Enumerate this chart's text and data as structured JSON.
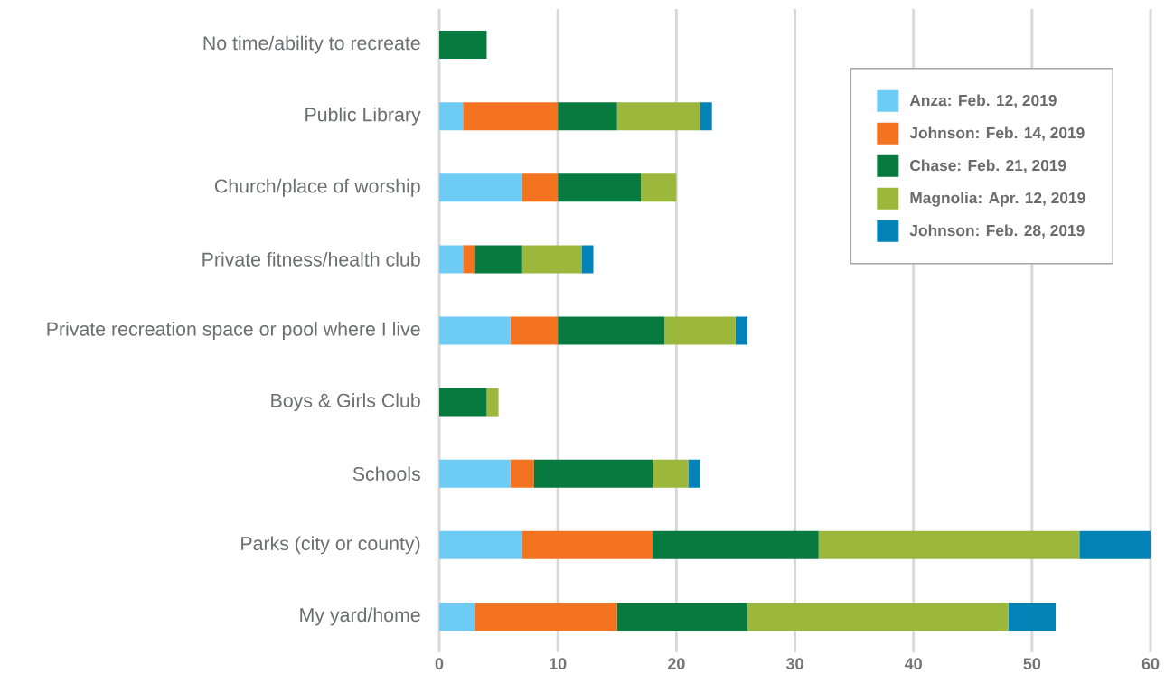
{
  "chart_data": {
    "type": "bar",
    "orientation": "horizontal",
    "stacked": true,
    "categories": [
      "No time/ability to recreate",
      "Public Library",
      "Church/place of worship",
      "Private fitness/health club",
      "Private recreation space or pool where I live",
      "Boys & Girls Club",
      "Schools",
      "Parks (city or county)",
      "My yard/home"
    ],
    "series": [
      {
        "name": "Anza: Feb. 12, 2019",
        "color": "#6ecbf4",
        "values": [
          0,
          2,
          7,
          2,
          6,
          0,
          6,
          7,
          3
        ]
      },
      {
        "name": "Johnson: Feb. 14, 2019",
        "color": "#f37321",
        "values": [
          0,
          8,
          3,
          1,
          4,
          0,
          2,
          11,
          12
        ]
      },
      {
        "name": "Chase: Feb. 21, 2019",
        "color": "#077a3f",
        "values": [
          4,
          5,
          7,
          4,
          9,
          4,
          10,
          14,
          11
        ]
      },
      {
        "name": "Magnolia: Apr. 12, 2019",
        "color": "#9cb83c",
        "values": [
          0,
          7,
          3,
          5,
          6,
          1,
          3,
          22,
          22
        ]
      },
      {
        "name": "Johnson: Feb. 28, 2019",
        "color": "#0283b8",
        "values": [
          0,
          1,
          0,
          1,
          1,
          0,
          1,
          6,
          4
        ]
      }
    ],
    "xlim": [
      0,
      60
    ],
    "xticks": [
      0,
      10,
      20,
      30,
      40,
      50,
      60
    ],
    "grid": "x",
    "legend": "top right"
  }
}
